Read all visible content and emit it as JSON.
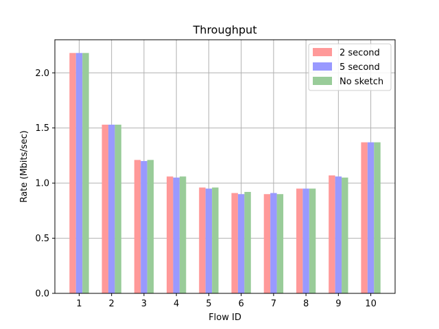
{
  "chart_data": {
    "type": "bar",
    "title": "Throughput",
    "xlabel": "Flow ID",
    "ylabel": "Rate (Mbits/sec)",
    "categories": [
      "1",
      "2",
      "3",
      "4",
      "5",
      "6",
      "7",
      "8",
      "9",
      "10"
    ],
    "ylim": [
      0,
      2.3
    ],
    "yticks": [
      "0.0",
      "0.5",
      "1.0",
      "1.5",
      "2.0"
    ],
    "grid": true,
    "legend_position": "top-right",
    "series": [
      {
        "name": "2 second",
        "color": "#ff9999",
        "values": [
          2.18,
          1.53,
          1.21,
          1.06,
          0.96,
          0.91,
          0.9,
          0.95,
          1.07,
          1.37
        ]
      },
      {
        "name": "5 second",
        "color": "#9999ff",
        "values": [
          2.18,
          1.53,
          1.2,
          1.05,
          0.95,
          0.9,
          0.91,
          0.95,
          1.06,
          1.37
        ]
      },
      {
        "name": "No sketch",
        "color": "#99cc99",
        "values": [
          2.18,
          1.53,
          1.21,
          1.06,
          0.96,
          0.92,
          0.9,
          0.95,
          1.05,
          1.37
        ]
      }
    ]
  }
}
